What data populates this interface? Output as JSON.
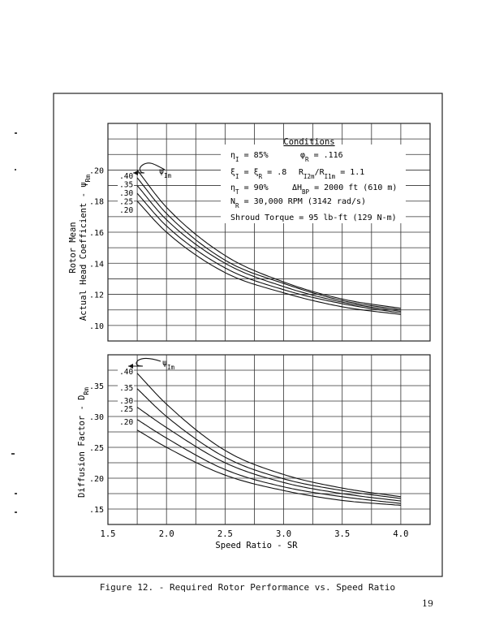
{
  "caption": "Figure 12. - Required Rotor Performance vs. Speed Ratio",
  "page_number": "19",
  "conditions": {
    "title": "Conditions",
    "line1a": "η_I = 85%",
    "line1b": "φ_R = .116",
    "line2a": "ξ_I = ξ_R = .8",
    "line2b": "R_I2m/R_I1m = 1.1",
    "line3a": "η_T = 90%",
    "line3b": "ΔH_BP = 2000 ft (610 m)",
    "line4": "N_R = 30,000 RPM (3142 rad/s)",
    "line5": "Shroud Torque = 95 lb-ft (129 N-m)"
  },
  "curve_pointer_label": "ψ_Im",
  "chart_data": [
    {
      "type": "line",
      "title": "",
      "ylabel_line1": "Rotor Mean",
      "ylabel_line2": "Actual Head Coefficient - ψ_Rm",
      "xlabel": "Speed Ratio - SR",
      "xlim": [
        1.5,
        4.25
      ],
      "ylim": [
        0.09,
        0.23
      ],
      "xticks": [
        "1.5",
        "2.0",
        "2.5",
        "3.0",
        "3.5",
        "4.0"
      ],
      "yticks": [
        ".10",
        ".12",
        ".14",
        ".16",
        ".18",
        ".20"
      ],
      "ytick_values": [
        0.1,
        0.12,
        0.14,
        0.16,
        0.18,
        0.2
      ],
      "grid": true,
      "series": [
        {
          "name": ".40",
          "x": [
            1.75,
            2.0,
            2.5,
            3.0,
            3.5,
            4.0
          ],
          "y": [
            0.2,
            0.176,
            0.145,
            0.128,
            0.117,
            0.111
          ]
        },
        {
          "name": ".35",
          "x": [
            1.75,
            2.0,
            2.5,
            3.0,
            3.5,
            4.0
          ],
          "y": [
            0.195,
            0.172,
            0.142,
            0.127,
            0.116,
            0.11
          ]
        },
        {
          "name": ".30",
          "x": [
            1.75,
            2.0,
            2.5,
            3.0,
            3.5,
            4.0
          ],
          "y": [
            0.19,
            0.168,
            0.14,
            0.125,
            0.115,
            0.109
          ]
        },
        {
          "name": ".25",
          "x": [
            1.75,
            2.0,
            2.5,
            3.0,
            3.5,
            4.0
          ],
          "y": [
            0.185,
            0.164,
            0.137,
            0.123,
            0.114,
            0.108
          ]
        },
        {
          "name": ".20",
          "x": [
            1.75,
            2.0,
            2.5,
            3.0,
            3.5,
            4.0
          ],
          "y": [
            0.18,
            0.16,
            0.134,
            0.121,
            0.112,
            0.107
          ]
        }
      ]
    },
    {
      "type": "line",
      "title": "",
      "ylabel": "Diffusion Factor - D_Rm",
      "xlabel": "Speed Ratio - SR",
      "xlim": [
        1.5,
        4.25
      ],
      "ylim": [
        0.125,
        0.4
      ],
      "xticks": [
        "1.5",
        "2.0",
        "2.5",
        "3.0",
        "3.5",
        "4.0"
      ],
      "yticks": [
        ".15",
        ".20",
        ".25",
        ".30",
        ".35"
      ],
      "ytick_values": [
        0.15,
        0.2,
        0.25,
        0.3,
        0.35
      ],
      "grid": true,
      "series": [
        {
          "name": ".40",
          "x": [
            1.75,
            2.0,
            2.5,
            3.0,
            3.5,
            4.0
          ],
          "y": [
            0.37,
            0.32,
            0.245,
            0.206,
            0.184,
            0.17
          ]
        },
        {
          "name": ".35",
          "x": [
            1.75,
            2.0,
            2.5,
            3.0,
            3.5,
            4.0
          ],
          "y": [
            0.345,
            0.3,
            0.234,
            0.199,
            0.18,
            0.167
          ]
        },
        {
          "name": ".30",
          "x": [
            1.75,
            2.0,
            2.5,
            3.0,
            3.5,
            4.0
          ],
          "y": [
            0.315,
            0.282,
            0.225,
            0.193,
            0.175,
            0.163
          ]
        },
        {
          "name": ".25",
          "x": [
            1.75,
            2.0,
            2.5,
            3.0,
            3.5,
            4.0
          ],
          "y": [
            0.295,
            0.265,
            0.214,
            0.186,
            0.17,
            0.159
          ]
        },
        {
          "name": ".20",
          "x": [
            1.75,
            2.0,
            2.5,
            3.0,
            3.5,
            4.0
          ],
          "y": [
            0.278,
            0.25,
            0.205,
            0.18,
            0.164,
            0.156
          ]
        }
      ]
    }
  ]
}
